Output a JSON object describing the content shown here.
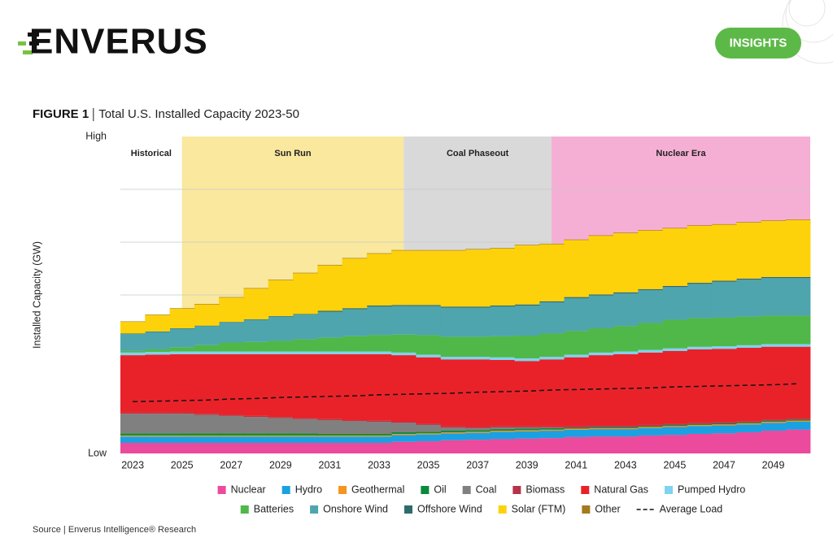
{
  "header": {
    "logo": "ENVERUS",
    "badge": "INSIGHTS"
  },
  "source": "Source | Enverus Intelligence® Research",
  "chart_data": {
    "type": "stacked_step_area",
    "figure_label": "FIGURE 1",
    "title": "Total U.S. Installed Capacity 2023-50",
    "y_label": "Installed Capacity (GW)",
    "x": [
      2023,
      2024,
      2025,
      2026,
      2027,
      2028,
      2029,
      2030,
      2031,
      2032,
      2033,
      2034,
      2035,
      2036,
      2037,
      2038,
      2039,
      2040,
      2041,
      2042,
      2043,
      2044,
      2045,
      2046,
      2047,
      2048,
      2049,
      2050
    ],
    "xlim": [
      2022.5,
      2050.5
    ],
    "xticks": [
      2023,
      2025,
      2027,
      2029,
      2031,
      2033,
      2035,
      2037,
      2039,
      2041,
      2043,
      2045,
      2047,
      2049
    ],
    "ylim": [
      0,
      6
    ],
    "yticks": [
      {
        "value": 0,
        "label": "Low"
      },
      {
        "value": 6,
        "label": "High"
      }
    ],
    "gridlines": [
      1,
      2,
      3,
      4,
      5
    ],
    "eras": [
      {
        "name": "Historical",
        "color": "#ffffff",
        "start": 2022.5,
        "end": 2025
      },
      {
        "name": "Sun Run",
        "color": "#f9e89e",
        "start": 2025,
        "end": 2034
      },
      {
        "name": "Coal Phaseout",
        "color": "#d9d9d9",
        "start": 2034,
        "end": 2040
      },
      {
        "name": "Nuclear Era",
        "color": "#f6afd4",
        "start": 2040,
        "end": 2050.5
      }
    ],
    "series": [
      {
        "name": "Nuclear",
        "color": "#ec4a9c",
        "values": [
          0.2,
          0.2,
          0.2,
          0.2,
          0.2,
          0.2,
          0.2,
          0.2,
          0.2,
          0.2,
          0.2,
          0.22,
          0.23,
          0.25,
          0.26,
          0.27,
          0.28,
          0.29,
          0.31,
          0.32,
          0.32,
          0.34,
          0.35,
          0.37,
          0.38,
          0.4,
          0.43,
          0.45
        ]
      },
      {
        "name": "Hydro",
        "color": "#1ba1e2",
        "values": [
          0.12,
          0.12,
          0.12,
          0.12,
          0.12,
          0.12,
          0.12,
          0.12,
          0.12,
          0.12,
          0.12,
          0.13,
          0.13,
          0.13,
          0.13,
          0.14,
          0.14,
          0.14,
          0.14,
          0.14,
          0.14,
          0.14,
          0.15,
          0.15,
          0.15,
          0.15,
          0.15,
          0.15
        ]
      },
      {
        "name": "Geothermal",
        "color": "#f7941d",
        "values": [
          0.02,
          0.02,
          0.02,
          0.02,
          0.02,
          0.02,
          0.02,
          0.02,
          0.02,
          0.02,
          0.02,
          0.02,
          0.02,
          0.02,
          0.02,
          0.02,
          0.02,
          0.02,
          0.02,
          0.02,
          0.02,
          0.02,
          0.02,
          0.02,
          0.02,
          0.02,
          0.02,
          0.02
        ]
      },
      {
        "name": "Oil",
        "color": "#0b8a3c",
        "values": [
          0.04,
          0.04,
          0.04,
          0.04,
          0.04,
          0.04,
          0.04,
          0.04,
          0.03,
          0.03,
          0.03,
          0.03,
          0.03,
          0.03,
          0.03,
          0.03,
          0.03,
          0.03,
          0.02,
          0.02,
          0.02,
          0.02,
          0.02,
          0.02,
          0.02,
          0.02,
          0.02,
          0.02
        ]
      },
      {
        "name": "Coal",
        "color": "#808080",
        "values": [
          0.37,
          0.37,
          0.37,
          0.35,
          0.33,
          0.31,
          0.29,
          0.27,
          0.26,
          0.24,
          0.23,
          0.18,
          0.13,
          0.06,
          0.04,
          0.03,
          0.02,
          0.01,
          0,
          0,
          0,
          0,
          0,
          0,
          0,
          0,
          0,
          0
        ]
      },
      {
        "name": "Biomass",
        "color": "#b5344a",
        "values": [
          0.02,
          0.02,
          0.02,
          0.02,
          0.02,
          0.02,
          0.02,
          0.02,
          0.02,
          0.02,
          0.02,
          0.02,
          0.02,
          0.02,
          0.02,
          0.02,
          0.02,
          0.02,
          0.02,
          0.02,
          0.02,
          0.02,
          0.02,
          0.02,
          0.02,
          0.02,
          0.02,
          0.02
        ]
      },
      {
        "name": "Natural Gas",
        "color": "#e9222a",
        "values": [
          1.09,
          1.1,
          1.11,
          1.13,
          1.15,
          1.17,
          1.19,
          1.21,
          1.23,
          1.25,
          1.26,
          1.26,
          1.26,
          1.27,
          1.28,
          1.26,
          1.24,
          1.27,
          1.31,
          1.34,
          1.36,
          1.37,
          1.38,
          1.39,
          1.39,
          1.39,
          1.38,
          1.36
        ]
      },
      {
        "name": "Pumped Hydro",
        "color": "#7fd3f0",
        "values": [
          0.05,
          0.05,
          0.05,
          0.05,
          0.05,
          0.05,
          0.05,
          0.05,
          0.05,
          0.05,
          0.05,
          0.05,
          0.05,
          0.05,
          0.05,
          0.05,
          0.05,
          0.05,
          0.05,
          0.05,
          0.05,
          0.05,
          0.05,
          0.05,
          0.05,
          0.05,
          0.05,
          0.05
        ]
      },
      {
        "name": "Batteries",
        "color": "#4fb848",
        "values": [
          0.03,
          0.05,
          0.08,
          0.12,
          0.17,
          0.18,
          0.2,
          0.23,
          0.26,
          0.29,
          0.31,
          0.34,
          0.37,
          0.38,
          0.38,
          0.4,
          0.43,
          0.44,
          0.45,
          0.46,
          0.48,
          0.51,
          0.54,
          0.54,
          0.54,
          0.54,
          0.54,
          0.54
        ]
      },
      {
        "name": "Onshore Wind",
        "color": "#4ea5ad",
        "values": [
          0.32,
          0.33,
          0.35,
          0.36,
          0.38,
          0.42,
          0.46,
          0.47,
          0.49,
          0.51,
          0.54,
          0.54,
          0.55,
          0.55,
          0.55,
          0.56,
          0.57,
          0.59,
          0.62,
          0.62,
          0.62,
          0.62,
          0.62,
          0.65,
          0.68,
          0.7,
          0.71,
          0.71
        ]
      },
      {
        "name": "Offshore Wind",
        "color": "#2e6b6b",
        "values": [
          0.01,
          0.01,
          0.01,
          0.01,
          0.01,
          0.01,
          0.01,
          0.01,
          0.02,
          0.02,
          0.02,
          0.02,
          0.02,
          0.02,
          0.02,
          0.02,
          0.02,
          0.02,
          0.02,
          0.02,
          0.02,
          0.02,
          0.02,
          0.02,
          0.02,
          0.02,
          0.02,
          0.02
        ]
      },
      {
        "name": "Solar (FTM)",
        "color": "#fdd20a",
        "values": [
          0.22,
          0.31,
          0.37,
          0.4,
          0.46,
          0.58,
          0.68,
          0.77,
          0.86,
          0.94,
          0.98,
          1.03,
          1.03,
          1.06,
          1.08,
          1.08,
          1.12,
          1.08,
          1.08,
          1.11,
          1.12,
          1.11,
          1.09,
          1.08,
          1.06,
          1.06,
          1.06,
          1.08
        ]
      },
      {
        "name": "Other",
        "color": "#a47a1e",
        "values": [
          0.01,
          0.01,
          0.01,
          0.01,
          0.01,
          0.01,
          0.01,
          0.01,
          0.01,
          0.01,
          0.01,
          0.01,
          0.01,
          0.01,
          0.01,
          0.01,
          0.01,
          0.01,
          0.01,
          0.01,
          0.01,
          0.01,
          0.01,
          0.01,
          0.01,
          0.01,
          0.01,
          0.01
        ]
      },
      {
        "name": "Average Load",
        "color": "#111111",
        "line_style": "dashed",
        "values": [
          0.98,
          0.99,
          1.0,
          1.01,
          1.03,
          1.04,
          1.06,
          1.07,
          1.08,
          1.09,
          1.11,
          1.12,
          1.13,
          1.14,
          1.16,
          1.17,
          1.18,
          1.2,
          1.21,
          1.22,
          1.23,
          1.24,
          1.26,
          1.27,
          1.28,
          1.29,
          1.3,
          1.32
        ]
      }
    ],
    "legend_rows": [
      8,
      6
    ]
  }
}
